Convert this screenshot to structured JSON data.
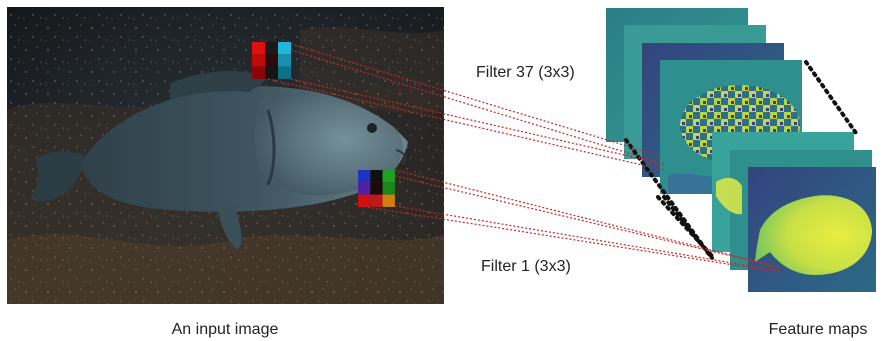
{
  "labels": {
    "input_image": "An input image",
    "feature_maps": "Feature maps",
    "filter_top": "Filter 37 (3x3)",
    "filter_bottom": "Filter 1 (3x3)"
  },
  "colors": {
    "connector": "#c62828",
    "stack_edge": "#111111",
    "water_dark": "#1c2126",
    "rock": "#4a3b2a",
    "fish_body": "#3f5560",
    "fish_head": "#6b8590",
    "map_teal": "#2f8a8a",
    "map_yellow": "#d4e84a",
    "map_navy": "#3a4a8a"
  },
  "filter_cells": {
    "top": [
      "#e01010",
      "#1a1a1a",
      "#20b8d8",
      "#c00a0a",
      "#2a0a0a",
      "#1890b0",
      "#8a0606",
      "#141414",
      "#0c7088"
    ],
    "bottom": [
      "#2030c0",
      "#101010",
      "#20a020",
      "#5020a0",
      "#1a0a0a",
      "#188818",
      "#d01010",
      "#c01818",
      "#d08010"
    ]
  },
  "icons": {
    "fish": "fish-photo",
    "maps": "feature-map-stack"
  }
}
